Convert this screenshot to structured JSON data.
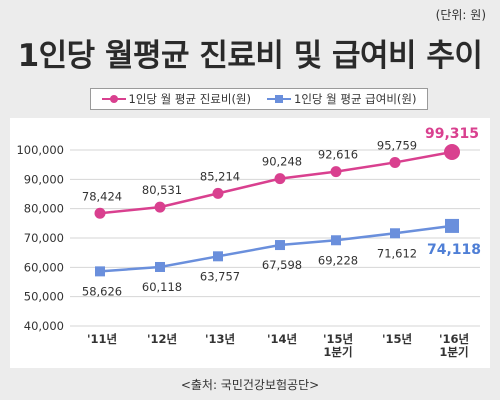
{
  "unit_note": "(단위: 원)",
  "title": "1인당 월평균 진료비 및 급여비 추이",
  "legend": {
    "series1": "1인당 월 평균 진료비(원)",
    "series2": "1인당 월 평균 급여비(원)"
  },
  "source": "<출처: 국민건강보험공단>",
  "colors": {
    "series1": "#d9408f",
    "series2": "#6a8fdc",
    "series2_label_highlight": "#4f7fd6"
  },
  "chart_data": {
    "type": "line",
    "categories": [
      "'11년",
      "'12년",
      "'13년",
      "'14년",
      "'15년 1분기",
      "'15년",
      "'16년 1분기"
    ],
    "ylim": [
      40000,
      100000
    ],
    "yticks": [
      40000,
      50000,
      60000,
      70000,
      80000,
      90000,
      100000
    ],
    "ytick_labels": [
      "40,000",
      "50,000",
      "60,000",
      "70,000",
      "80,000",
      "90,000",
      "100,000"
    ],
    "grid": true,
    "legend_position": "top",
    "series": [
      {
        "name": "1인당 월 평균 진료비(원)",
        "values": [
          78424,
          80531,
          85214,
          90248,
          92616,
          95759,
          99315
        ],
        "labels": [
          "78,424",
          "80,531",
          "85,214",
          "90,248",
          "92,616",
          "95,759",
          "99,315"
        ]
      },
      {
        "name": "1인당 월 평균 급여비(원)",
        "values": [
          58626,
          60118,
          63757,
          67598,
          69228,
          71612,
          74118
        ],
        "labels": [
          "58,626",
          "60,118",
          "63,757",
          "67,598",
          "69,228",
          "71,612",
          "74,118"
        ]
      }
    ]
  }
}
